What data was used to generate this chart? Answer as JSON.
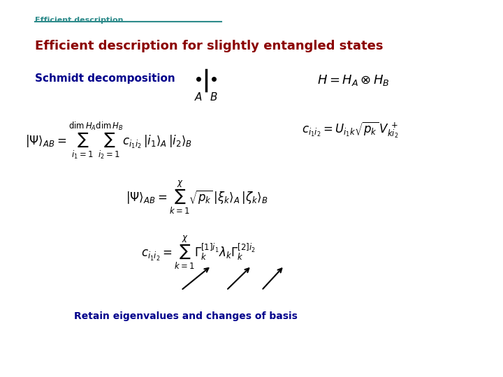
{
  "background_color": "#ffffff",
  "title_bar_text": "Efficient description",
  "title_bar_color": "#2e8b8b",
  "title_bar_underline_color": "#2e8b8b",
  "heading_text": "Efficient description for slightly entangled states",
  "heading_color": "#8b0000",
  "subheading_text": "Schmidt decomposition",
  "subheading_color": "#00008b",
  "bottom_label_text": "Retain eigenvalues and changes of basis",
  "bottom_label_color": "#00008b",
  "fig_width": 7.2,
  "fig_height": 5.4,
  "dpi": 100
}
